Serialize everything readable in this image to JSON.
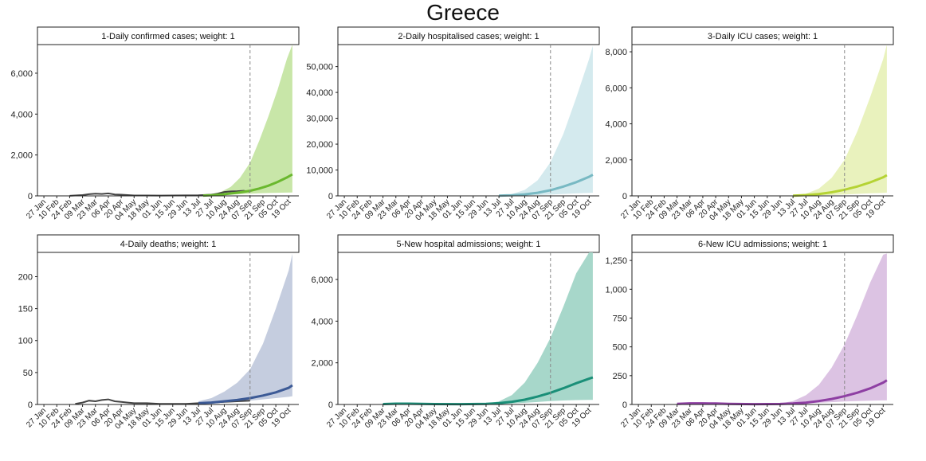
{
  "title": "Greece",
  "chart_data": [
    {
      "type": "area",
      "title": "1-Daily confirmed cases; weight: 1",
      "x_ticks": [
        "27 Jan",
        "10 Feb",
        "24 Feb",
        "09 Mar",
        "23 Mar",
        "06 Apr",
        "20 Apr",
        "04 May",
        "18 May",
        "01 Jun",
        "15 Jun",
        "29 Jun",
        "13 Jul",
        "27 Jul",
        "10 Aug",
        "24 Aug",
        "07 Sep",
        "21 Sep",
        "05 Oct",
        "19 Oct"
      ],
      "y_ticks": [
        0,
        2000,
        4000,
        6000
      ],
      "y_tick_labels": [
        "0",
        "2,000",
        "4,000",
        "6,000"
      ],
      "ylim": [
        0,
        7400
      ],
      "forecast_start": "07 Sep",
      "color": "#6ab82e",
      "band_color": "#c8e6a8",
      "series": [
        {
          "x": [
            "18 Jul",
            "28 Jul",
            "07 Aug",
            "17 Aug",
            "27 Aug",
            "07 Sep",
            "17 Sep",
            "27 Sep",
            "07 Oct",
            "17 Oct",
            "23 Oct"
          ],
          "upper": [
            30,
            90,
            210,
            440,
            880,
            1620,
            2700,
            3900,
            5200,
            6700,
            7400
          ],
          "lower": [
            10,
            20,
            35,
            55,
            80,
            105,
            125,
            140,
            150,
            160,
            165
          ]
        },
        {
          "x": [
            "18 Jul",
            "28 Jul",
            "07 Aug",
            "17 Aug",
            "27 Aug",
            "07 Sep",
            "17 Sep",
            "27 Sep",
            "07 Oct",
            "17 Oct",
            "23 Oct"
          ],
          "y": [
            15,
            35,
            70,
            115,
            170,
            250,
            360,
            500,
            680,
            900,
            1050
          ]
        },
        {
          "x": [
            "24 Feb",
            "09 Mar",
            "16 Mar",
            "23 Mar",
            "30 Mar",
            "06 Apr",
            "13 Apr",
            "20 Apr",
            "27 Apr",
            "04 May",
            "18 May",
            "01 Jun",
            "15 Jun",
            "29 Jun",
            "13 Jul",
            "27 Jul",
            "03 Aug",
            "10 Aug",
            "17 Aug",
            "24 Aug",
            "31 Aug",
            "07 Sep"
          ],
          "y": [
            5,
            40,
            80,
            110,
            95,
            120,
            70,
            60,
            40,
            20,
            20,
            15,
            20,
            25,
            30,
            60,
            110,
            190,
            220,
            230,
            250,
            200
          ]
        }
      ]
    },
    {
      "type": "area",
      "title": "2-Daily hospitalised cases; weight: 1",
      "x_ticks": [
        "27 Jan",
        "10 Feb",
        "24 Feb",
        "09 Mar",
        "23 Mar",
        "06 Apr",
        "20 Apr",
        "04 May",
        "18 May",
        "01 Jun",
        "15 Jun",
        "29 Jun",
        "13 Jul",
        "27 Jul",
        "10 Aug",
        "24 Aug",
        "07 Sep",
        "21 Sep",
        "05 Oct",
        "19 Oct"
      ],
      "y_ticks": [
        0,
        10000,
        20000,
        30000,
        40000,
        50000
      ],
      "y_tick_labels": [
        "0",
        "10,000",
        "20,000",
        "30,000",
        "40,000",
        "50,000"
      ],
      "ylim": [
        0,
        58500
      ],
      "forecast_start": "07 Sep",
      "color": "#78b9c3",
      "band_color": "#d4eaee",
      "series": [
        {
          "x": [
            "13 Jul",
            "27 Jul",
            "10 Aug",
            "24 Aug",
            "07 Sep",
            "21 Sep",
            "05 Oct",
            "19 Oct",
            "23 Oct"
          ],
          "upper": [
            150,
            700,
            2300,
            6000,
            13000,
            24000,
            38000,
            53000,
            58000
          ],
          "lower": [
            20,
            60,
            150,
            300,
            500,
            750,
            950,
            1150,
            1200
          ]
        },
        {
          "x": [
            "13 Jul",
            "27 Jul",
            "10 Aug",
            "24 Aug",
            "07 Sep",
            "21 Sep",
            "05 Oct",
            "19 Oct",
            "23 Oct"
          ],
          "y": [
            80,
            250,
            600,
            1200,
            2200,
            3600,
            5300,
            7400,
            8200
          ]
        }
      ]
    },
    {
      "type": "area",
      "title": "3-Daily ICU cases; weight: 1",
      "x_ticks": [
        "27 Jan",
        "10 Feb",
        "24 Feb",
        "09 Mar",
        "23 Mar",
        "06 Apr",
        "20 Apr",
        "04 May",
        "18 May",
        "01 Jun",
        "15 Jun",
        "29 Jun",
        "13 Jul",
        "27 Jul",
        "10 Aug",
        "24 Aug",
        "07 Sep",
        "21 Sep",
        "05 Oct",
        "19 Oct"
      ],
      "y_ticks": [
        0,
        2000,
        4000,
        6000,
        8000
      ],
      "y_tick_labels": [
        "0",
        "2,000",
        "4,000",
        "6,000",
        "8,000"
      ],
      "ylim": [
        0,
        8400
      ],
      "forecast_start": "07 Sep",
      "color": "#b5d334",
      "band_color": "#e9f2bd",
      "series": [
        {
          "x": [
            "13 Jul",
            "27 Jul",
            "10 Aug",
            "24 Aug",
            "07 Sep",
            "21 Sep",
            "05 Oct",
            "19 Oct",
            "23 Oct"
          ],
          "upper": [
            30,
            120,
            400,
            1000,
            2000,
            3600,
            5500,
            7600,
            8400
          ],
          "lower": [
            5,
            10,
            25,
            45,
            75,
            110,
            140,
            170,
            180
          ]
        },
        {
          "x": [
            "13 Jul",
            "27 Jul",
            "10 Aug",
            "24 Aug",
            "07 Sep",
            "21 Sep",
            "05 Oct",
            "19 Oct",
            "23 Oct"
          ],
          "y": [
            15,
            45,
            100,
            200,
            340,
            520,
            750,
            1030,
            1150
          ]
        }
      ]
    },
    {
      "type": "area",
      "title": "4-Daily deaths; weight: 1",
      "x_ticks": [
        "27 Jan",
        "10 Feb",
        "24 Feb",
        "09 Mar",
        "23 Mar",
        "06 Apr",
        "20 Apr",
        "04 May",
        "18 May",
        "01 Jun",
        "15 Jun",
        "29 Jun",
        "13 Jul",
        "27 Jul",
        "10 Aug",
        "24 Aug",
        "07 Sep",
        "21 Sep",
        "05 Oct",
        "19 Oct"
      ],
      "y_ticks": [
        0,
        50,
        100,
        150,
        200
      ],
      "y_tick_labels": [
        "0",
        "50",
        "100",
        "150",
        "200"
      ],
      "ylim": [
        0,
        238
      ],
      "forecast_start": "07 Sep",
      "color": "#3c5a96",
      "band_color": "#c5cddf",
      "series": [
        {
          "x": [
            "13 Jul",
            "27 Jul",
            "10 Aug",
            "24 Aug",
            "07 Sep",
            "21 Sep",
            "05 Oct",
            "19 Oct",
            "23 Oct"
          ],
          "upper": [
            5,
            10,
            20,
            34,
            55,
            95,
            150,
            210,
            236
          ],
          "lower": [
            1,
            2,
            3,
            4,
            6,
            8,
            10,
            12,
            13
          ]
        },
        {
          "x": [
            "13 Jul",
            "27 Jul",
            "10 Aug",
            "24 Aug",
            "07 Sep",
            "21 Sep",
            "05 Oct",
            "19 Oct",
            "23 Oct"
          ],
          "y": [
            2,
            3,
            5,
            7,
            10,
            14,
            19,
            26,
            30
          ]
        },
        {
          "x": [
            "01 Mar",
            "09 Mar",
            "16 Mar",
            "23 Mar",
            "30 Mar",
            "06 Apr",
            "13 Apr",
            "20 Apr",
            "27 Apr",
            "04 May",
            "18 May",
            "01 Jun",
            "15 Jun",
            "29 Jun",
            "13 Jul",
            "27 Jul",
            "10 Aug",
            "24 Aug",
            "07 Sep"
          ],
          "y": [
            1,
            3,
            6,
            5,
            7,
            8,
            5,
            4,
            3,
            2,
            2,
            1,
            1,
            1,
            2,
            3,
            4,
            5,
            6
          ]
        }
      ]
    },
    {
      "type": "area",
      "title": "5-New hospital admissions; weight: 1",
      "x_ticks": [
        "27 Jan",
        "10 Feb",
        "24 Feb",
        "09 Mar",
        "23 Mar",
        "06 Apr",
        "20 Apr",
        "04 May",
        "18 May",
        "01 Jun",
        "15 Jun",
        "29 Jun",
        "13 Jul",
        "27 Jul",
        "10 Aug",
        "24 Aug",
        "07 Sep",
        "21 Sep",
        "05 Oct",
        "19 Oct"
      ],
      "y_ticks": [
        0,
        2000,
        4000,
        6000
      ],
      "y_tick_labels": [
        "0",
        "2,000",
        "4,000",
        "6,000"
      ],
      "ylim": [
        0,
        7300
      ],
      "forecast_start": "07 Sep",
      "color": "#1a8f78",
      "band_color": "#a7d7ca",
      "series": [
        {
          "x": [
            "29 Jun",
            "13 Jul",
            "27 Jul",
            "10 Aug",
            "24 Aug",
            "07 Sep",
            "21 Sep",
            "05 Oct",
            "19 Oct",
            "23 Oct"
          ],
          "upper": [
            40,
            150,
            450,
            1050,
            2000,
            3200,
            4700,
            6300,
            7300,
            7300
          ],
          "lower": [
            10,
            20,
            45,
            80,
            120,
            160,
            190,
            210,
            220,
            220
          ]
        },
        {
          "x": [
            "09 Mar",
            "23 Mar",
            "06 Apr",
            "20 Apr",
            "04 May",
            "01 Jun",
            "29 Jun",
            "13 Jul",
            "27 Jul",
            "10 Aug",
            "24 Aug",
            "07 Sep",
            "21 Sep",
            "05 Oct",
            "19 Oct",
            "23 Oct"
          ],
          "y": [
            20,
            40,
            40,
            30,
            20,
            15,
            25,
            60,
            130,
            230,
            380,
            560,
            780,
            1020,
            1240,
            1300
          ]
        }
      ]
    },
    {
      "type": "area",
      "title": "6-New ICU admissions; weight: 1",
      "x_ticks": [
        "27 Jan",
        "10 Feb",
        "24 Feb",
        "09 Mar",
        "23 Mar",
        "06 Apr",
        "20 Apr",
        "04 May",
        "18 May",
        "01 Jun",
        "15 Jun",
        "29 Jun",
        "13 Jul",
        "27 Jul",
        "10 Aug",
        "24 Aug",
        "07 Sep",
        "21 Sep",
        "05 Oct",
        "19 Oct"
      ],
      "y_ticks": [
        0,
        250,
        500,
        750,
        1000,
        1250
      ],
      "y_tick_labels": [
        "0",
        "250",
        "500",
        "750",
        "1,000",
        "1,250"
      ],
      "ylim": [
        0,
        1320
      ],
      "forecast_start": "07 Sep",
      "color": "#8e3fa3",
      "band_color": "#dcc3e3",
      "series": [
        {
          "x": [
            "29 Jun",
            "13 Jul",
            "27 Jul",
            "10 Aug",
            "24 Aug",
            "07 Sep",
            "21 Sep",
            "05 Oct",
            "19 Oct",
            "23 Oct"
          ],
          "upper": [
            8,
            30,
            80,
            170,
            320,
            520,
            780,
            1060,
            1300,
            1310
          ],
          "lower": [
            2,
            4,
            8,
            14,
            20,
            26,
            30,
            33,
            35,
            35
          ]
        },
        {
          "x": [
            "09 Mar",
            "23 Mar",
            "06 Apr",
            "20 Apr",
            "04 May",
            "01 Jun",
            "29 Jun",
            "13 Jul",
            "27 Jul",
            "10 Aug",
            "24 Aug",
            "07 Sep",
            "21 Sep",
            "05 Oct",
            "19 Oct",
            "23 Oct"
          ],
          "y": [
            5,
            10,
            10,
            8,
            5,
            3,
            4,
            8,
            16,
            30,
            48,
            72,
            102,
            140,
            190,
            210
          ]
        }
      ]
    }
  ]
}
